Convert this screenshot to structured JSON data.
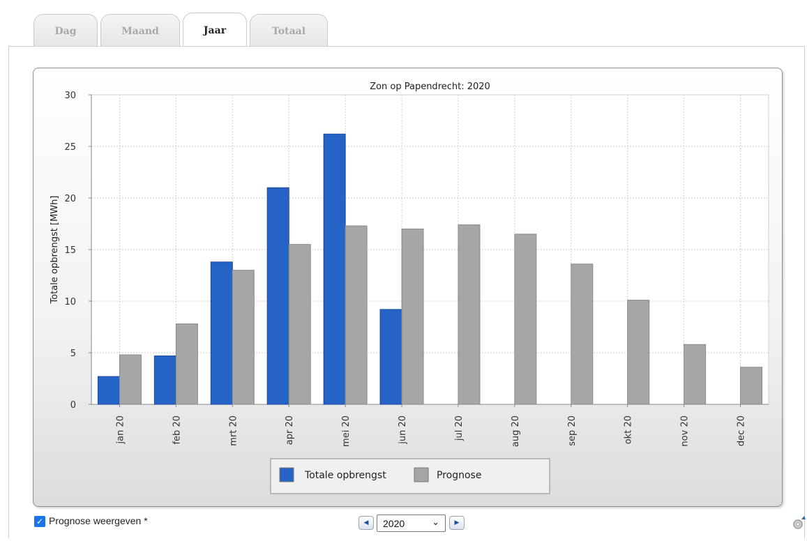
{
  "tabs": [
    {
      "label": "Dag",
      "active": false
    },
    {
      "label": "Maand",
      "active": false
    },
    {
      "label": "Jaar",
      "active": true
    },
    {
      "label": "Totaal",
      "active": false
    }
  ],
  "controls": {
    "prognose_checkbox_label": "Prognose weergeven *",
    "prognose_checked": true,
    "year_selected": "2020"
  },
  "icons": {
    "prev": "chevron-left-icon",
    "next": "chevron-right-icon",
    "settings": "gear-icon"
  },
  "colors": {
    "actual": "#2563c7",
    "forecast": "#a6a6a6"
  },
  "chart_data": {
    "type": "bar",
    "title": "Zon op Papendrecht: 2020",
    "xlabel": "",
    "ylabel": "Totale opbrengst [MWh]",
    "ylim": [
      0,
      30
    ],
    "yticks": [
      0,
      5,
      10,
      15,
      20,
      25,
      30
    ],
    "grid": true,
    "legend_position": "bottom",
    "categories": [
      "jan 20",
      "feb 20",
      "mrt 20",
      "apr 20",
      "mei 20",
      "jun 20",
      "jul 20",
      "aug 20",
      "sep 20",
      "okt 20",
      "nov 20",
      "dec 20"
    ],
    "series": [
      {
        "name": "Totale opbrengst",
        "color": "#2563c7",
        "values": [
          2.7,
          4.7,
          13.8,
          21.0,
          26.2,
          9.2,
          null,
          null,
          null,
          null,
          null,
          null
        ]
      },
      {
        "name": "Prognose",
        "color": "#a6a6a6",
        "values": [
          4.8,
          7.8,
          13.0,
          15.5,
          17.3,
          17.0,
          17.4,
          16.5,
          13.6,
          10.1,
          5.8,
          3.6
        ]
      }
    ]
  }
}
